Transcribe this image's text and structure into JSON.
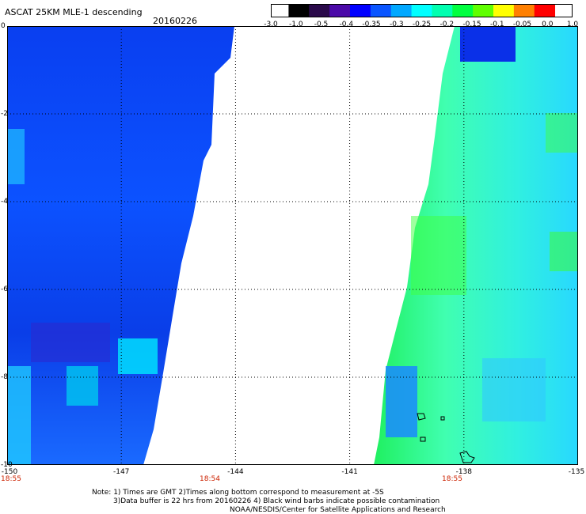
{
  "header": {
    "title": "ASCAT 25KM MLE-1 descending",
    "date": "20160226"
  },
  "colorbar": {
    "labels": [
      "-3.0",
      "-1.0",
      "-0.5",
      "-0.4",
      "-0.35",
      "-0.3",
      "-0.25",
      "-0.2",
      "-0.15",
      "-0.1",
      "-0.05",
      "0.0",
      "1.0"
    ],
    "colors": [
      "#000000",
      "#2a0a4a",
      "#4b0aa8",
      "#0000ff",
      "#0a55ff",
      "#00a8ff",
      "#00ffff",
      "#00ffb0",
      "#00ff40",
      "#60ff00",
      "#ffff00",
      "#ff8000",
      "#ff0000"
    ]
  },
  "axes": {
    "y_labels": [
      "0",
      "-2",
      "-4",
      "-6",
      "-8",
      "-10"
    ],
    "x_labels": [
      "-150",
      "-147",
      "-144",
      "-141",
      "-138",
      "-135"
    ]
  },
  "times": [
    "18:55",
    "18:54",
    "18:55"
  ],
  "notes": [
    "Note: 1) Times are GMT 2)Times along bottom correspond to measurement at -5S",
    "3)Data buffer is 22 hrs from 20160226 4) Black wind barbs indicate possible contamination",
    "NOAA/NESDIS/Center for Satellite Applications and Research"
  ],
  "map": {
    "lon_range": [
      -150,
      -135
    ],
    "lat_range": [
      -10,
      0
    ]
  }
}
